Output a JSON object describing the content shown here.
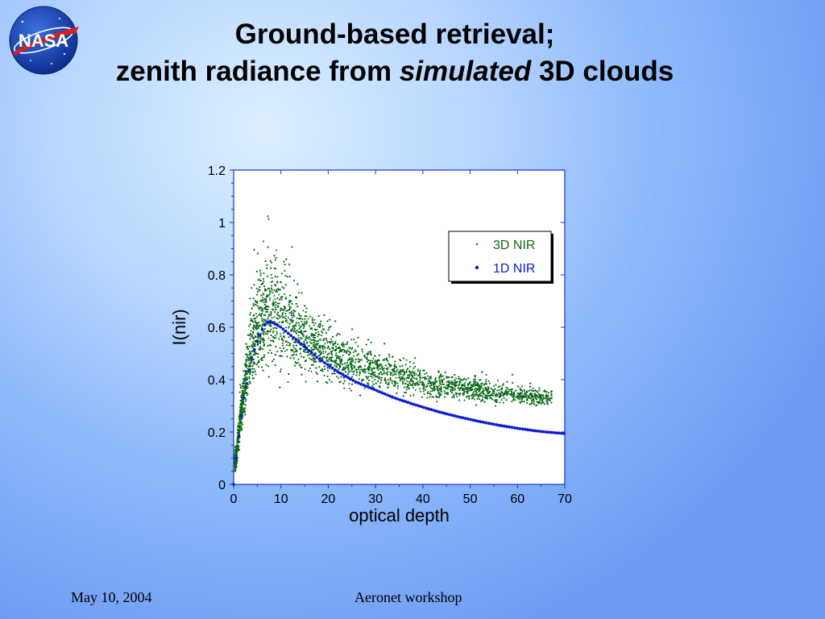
{
  "slide": {
    "title_line1": "Ground-based retrieval;",
    "title_line2_pre": "zenith radiance from ",
    "title_line2_em": "simulated",
    "title_line2_post": " 3D clouds",
    "logo_text": "NASA",
    "footer_date": "May 10, 2004",
    "footer_event": "Aeronet workshop"
  },
  "colors": {
    "series_3d": "#0b6a1a",
    "series_1d": "#0a1ad6",
    "axis": "#1a2fd0",
    "plot_bg": "#ffffff"
  },
  "chart_data": {
    "type": "scatter",
    "xlabel": "optical depth",
    "ylabel": "I(nir)",
    "xlim": [
      0,
      70
    ],
    "ylim": [
      0,
      1.2
    ],
    "x_ticks": [
      "0",
      "10",
      "20",
      "30",
      "40",
      "50",
      "60",
      "70"
    ],
    "y_ticks": [
      "0",
      "0.2",
      "0.4",
      "0.6",
      "0.8",
      "1",
      "1.2"
    ],
    "grid": false,
    "legend_position": "top-right",
    "series": [
      {
        "name": "3D NIR",
        "marker": "small dot",
        "description_points_sampled": true,
        "x": [
          0.5,
          1,
          1.5,
          2,
          2.5,
          3,
          3.5,
          4,
          5,
          6,
          7,
          8,
          9,
          10,
          11,
          12,
          13,
          14,
          15,
          16,
          17,
          18,
          20,
          22,
          24,
          26,
          28,
          30,
          32,
          34,
          36,
          38,
          40,
          42,
          44,
          46,
          48,
          50,
          52,
          54,
          56,
          58,
          60,
          62,
          64,
          66
        ],
        "y_center": [
          0.09,
          0.18,
          0.26,
          0.33,
          0.4,
          0.46,
          0.5,
          0.54,
          0.6,
          0.63,
          0.65,
          0.66,
          0.65,
          0.64,
          0.62,
          0.61,
          0.59,
          0.57,
          0.56,
          0.54,
          0.53,
          0.52,
          0.5,
          0.48,
          0.47,
          0.46,
          0.45,
          0.44,
          0.43,
          0.42,
          0.41,
          0.4,
          0.39,
          0.38,
          0.38,
          0.37,
          0.37,
          0.36,
          0.36,
          0.35,
          0.35,
          0.35,
          0.34,
          0.34,
          0.33,
          0.33
        ],
        "y_spread": [
          0.03,
          0.05,
          0.07,
          0.09,
          0.1,
          0.11,
          0.12,
          0.13,
          0.15,
          0.17,
          0.18,
          0.18,
          0.18,
          0.17,
          0.16,
          0.15,
          0.14,
          0.13,
          0.12,
          0.11,
          0.1,
          0.1,
          0.09,
          0.08,
          0.08,
          0.07,
          0.07,
          0.06,
          0.06,
          0.06,
          0.05,
          0.05,
          0.05,
          0.05,
          0.04,
          0.04,
          0.04,
          0.04,
          0.04,
          0.04,
          0.04,
          0.03,
          0.03,
          0.03,
          0.03,
          0.03
        ]
      },
      {
        "name": "1D NIR",
        "marker": "dot",
        "x": [
          0,
          0.5,
          1,
          1.5,
          2,
          3,
          4,
          5,
          6,
          7,
          8,
          9,
          10,
          12,
          14,
          16,
          18,
          20,
          22,
          24,
          26,
          28,
          30,
          32,
          34,
          36,
          38,
          40,
          42,
          44,
          46,
          48,
          50,
          52,
          54,
          56,
          58,
          60,
          62,
          64,
          66,
          68,
          70
        ],
        "y": [
          0.0,
          0.09,
          0.17,
          0.24,
          0.31,
          0.41,
          0.49,
          0.55,
          0.59,
          0.62,
          0.62,
          0.61,
          0.6,
          0.57,
          0.54,
          0.51,
          0.48,
          0.455,
          0.43,
          0.41,
          0.39,
          0.375,
          0.36,
          0.345,
          0.33,
          0.318,
          0.306,
          0.295,
          0.284,
          0.274,
          0.265,
          0.256,
          0.248,
          0.24,
          0.233,
          0.226,
          0.22,
          0.214,
          0.209,
          0.204,
          0.2,
          0.197,
          0.194
        ]
      }
    ]
  }
}
